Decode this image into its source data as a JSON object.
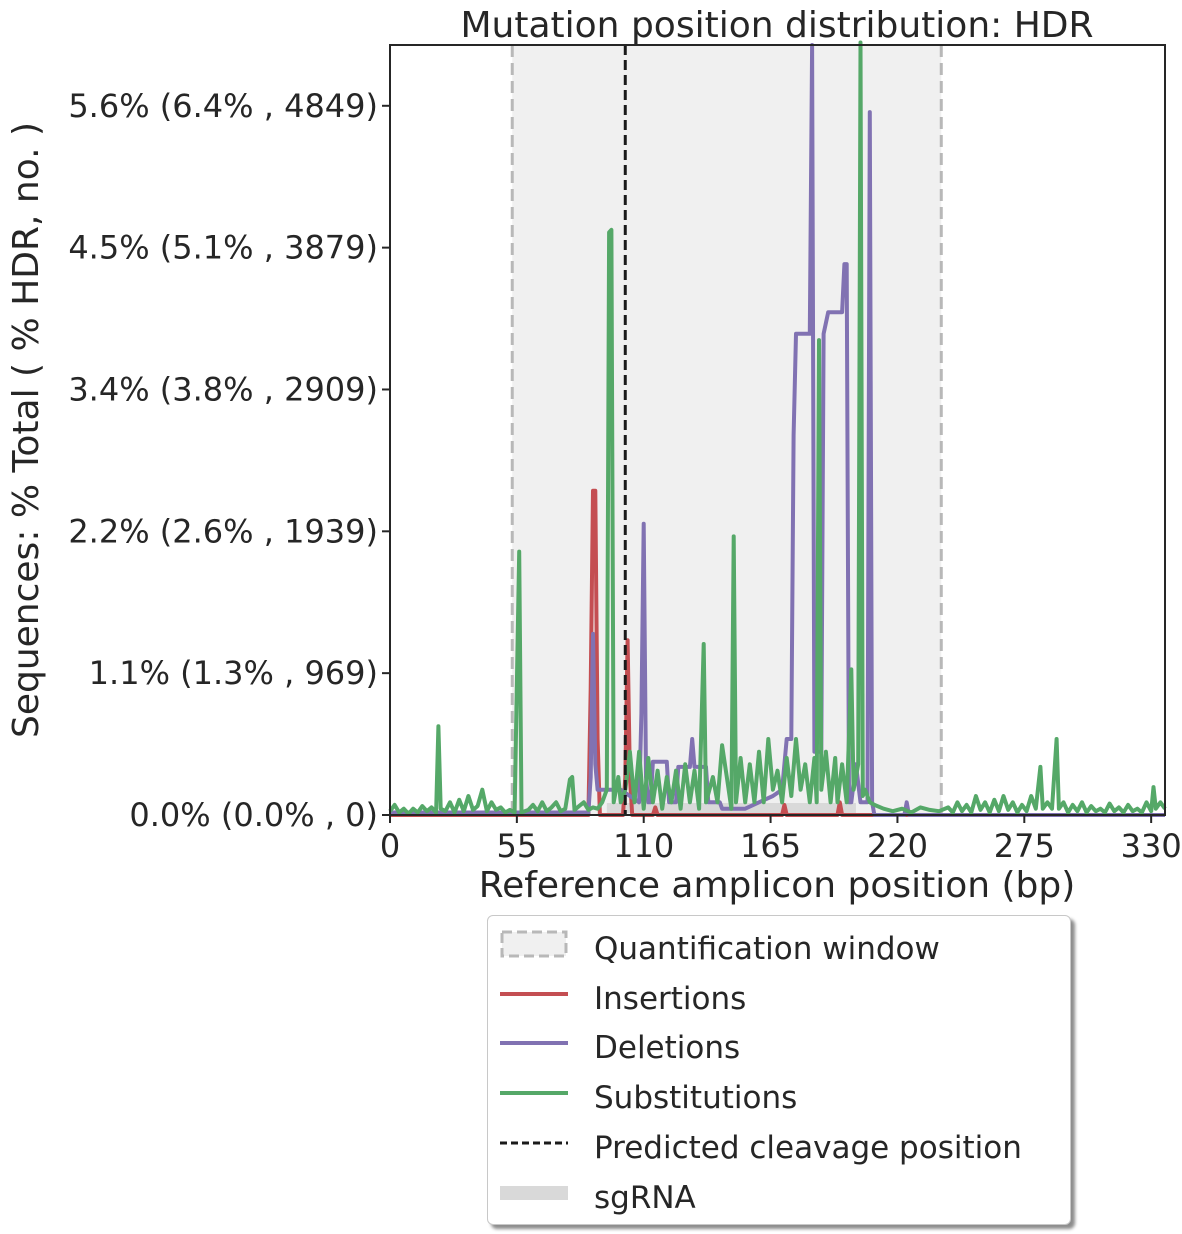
{
  "chart_data": {
    "type": "line",
    "title": "Mutation position distribution: HDR",
    "xlabel": "Reference amplicon position (bp)",
    "ylabel": "Sequences: % Total ( % HDR, no. )",
    "xlim": [
      0,
      336
    ],
    "ylim": [
      0,
      6.08
    ],
    "x_ticks": [
      0,
      55,
      110,
      165,
      220,
      275,
      330
    ],
    "x_tick_labels": [
      "0",
      "55",
      "110",
      "165",
      "220",
      "275",
      "330"
    ],
    "y_ticks": [
      0,
      1.12,
      2.24,
      3.36,
      4.48,
      5.6
    ],
    "y_tick_labels": [
      "0.0% (0.0% , 0)",
      "1.1% (1.3% , 969)",
      "2.2% (2.6% , 1939)",
      "3.4% (3.8% , 2909)",
      "4.5% (5.1% , 3879)",
      "5.6% (6.4% , 4849)"
    ],
    "quantification_window": [
      53,
      239
    ],
    "predicted_cleavage_position": 102,
    "sgRNA": [
      94,
      202
    ],
    "grid": false,
    "legend_position": "below",
    "series": [
      {
        "name": "Insertions",
        "color": "#c44e52",
        "points": [
          [
            0,
            0
          ],
          [
            86,
            0
          ],
          [
            87,
            1.0
          ],
          [
            88,
            2.56
          ],
          [
            89,
            2.56
          ],
          [
            90,
            0.6
          ],
          [
            91,
            0
          ],
          [
            101,
            0
          ],
          [
            102,
            0.3
          ],
          [
            103,
            1.38
          ],
          [
            104,
            0.3
          ],
          [
            105,
            0
          ],
          [
            114,
            0
          ],
          [
            115,
            0.06
          ],
          [
            116,
            0
          ],
          [
            170,
            0
          ],
          [
            171,
            0.08
          ],
          [
            172,
            0
          ],
          [
            194,
            0
          ],
          [
            195,
            0.1
          ],
          [
            196,
            0
          ],
          [
            336,
            0
          ]
        ]
      },
      {
        "name": "Deletions",
        "color": "#8172b2",
        "points": [
          [
            0,
            0.02
          ],
          [
            86,
            0.02
          ],
          [
            87,
            0.3
          ],
          [
            88,
            1.43
          ],
          [
            89,
            0.4
          ],
          [
            90,
            0.2
          ],
          [
            100,
            0.2
          ],
          [
            104,
            0.15
          ],
          [
            108,
            0.1
          ],
          [
            109,
            0.8
          ],
          [
            110,
            2.3
          ],
          [
            111,
            0.3
          ],
          [
            112,
            0.1
          ],
          [
            113,
            0.1
          ],
          [
            114,
            0.42
          ],
          [
            120,
            0.42
          ],
          [
            121,
            0.1
          ],
          [
            124,
            0.1
          ],
          [
            125,
            0.38
          ],
          [
            130,
            0.38
          ],
          [
            131,
            0.6
          ],
          [
            132,
            0.38
          ],
          [
            137,
            0.38
          ],
          [
            138,
            0.1
          ],
          [
            143,
            0.1
          ],
          [
            144,
            0.05
          ],
          [
            148,
            0.05
          ],
          [
            154,
            0.05
          ],
          [
            160,
            0.1
          ],
          [
            166,
            0.15
          ],
          [
            170,
            0.2
          ],
          [
            172,
            0.6
          ],
          [
            174,
            0.6
          ],
          [
            175,
            3.0
          ],
          [
            176,
            3.8
          ],
          [
            182,
            3.8
          ],
          [
            183,
            6.08
          ],
          [
            184,
            0.5
          ],
          [
            187,
            0.5
          ],
          [
            188,
            3.8
          ],
          [
            190,
            3.97
          ],
          [
            196,
            3.97
          ],
          [
            197,
            4.35
          ],
          [
            198,
            4.35
          ],
          [
            199,
            0.1
          ],
          [
            200,
            0.1
          ],
          [
            202,
            0.4
          ],
          [
            204,
            0.1
          ],
          [
            207,
            0.1
          ],
          [
            208,
            5.55
          ],
          [
            209,
            0.1
          ],
          [
            210,
            0
          ],
          [
            223,
            0
          ],
          [
            224,
            0.1
          ],
          [
            225,
            0
          ],
          [
            336,
            0
          ]
        ]
      },
      {
        "name": "Substitutions",
        "color": "#55a868",
        "points": [
          [
            0,
            0.03
          ],
          [
            2,
            0.08
          ],
          [
            4,
            0.02
          ],
          [
            6,
            0.05
          ],
          [
            8,
            0.01
          ],
          [
            10,
            0.05
          ],
          [
            12,
            0.02
          ],
          [
            14,
            0.07
          ],
          [
            16,
            0.03
          ],
          [
            18,
            0.06
          ],
          [
            20,
            0.02
          ],
          [
            21,
            0.7
          ],
          [
            22,
            0.05
          ],
          [
            24,
            0.03
          ],
          [
            26,
            0.1
          ],
          [
            28,
            0.02
          ],
          [
            30,
            0.12
          ],
          [
            32,
            0.03
          ],
          [
            34,
            0.15
          ],
          [
            36,
            0.04
          ],
          [
            38,
            0.07
          ],
          [
            40,
            0.2
          ],
          [
            42,
            0.03
          ],
          [
            44,
            0.1
          ],
          [
            46,
            0.04
          ],
          [
            48,
            0.06
          ],
          [
            50,
            0.02
          ],
          [
            52,
            0.04
          ],
          [
            54,
            0.02
          ],
          [
            56,
            2.08
          ],
          [
            57,
            0.02
          ],
          [
            60,
            0.04
          ],
          [
            62,
            0.08
          ],
          [
            64,
            0.03
          ],
          [
            66,
            0.1
          ],
          [
            68,
            0.03
          ],
          [
            70,
            0.06
          ],
          [
            72,
            0.1
          ],
          [
            74,
            0.03
          ],
          [
            76,
            0.05
          ],
          [
            78,
            0.28
          ],
          [
            79,
            0.3
          ],
          [
            80,
            0.04
          ],
          [
            82,
            0.07
          ],
          [
            84,
            0.1
          ],
          [
            86,
            0.04
          ],
          [
            88,
            0.06
          ],
          [
            90,
            0.05
          ],
          [
            92,
            0.1
          ],
          [
            94,
            0.2
          ],
          [
            95,
            4.6
          ],
          [
            96,
            4.62
          ],
          [
            97,
            0.1
          ],
          [
            99,
            0.3
          ],
          [
            100,
            0.1
          ],
          [
            102,
            0.2
          ],
          [
            104,
            0.5
          ],
          [
            106,
            0.1
          ],
          [
            108,
            0.5
          ],
          [
            110,
            0.05
          ],
          [
            112,
            0.45
          ],
          [
            114,
            0.1
          ],
          [
            116,
            0.35
          ],
          [
            118,
            0.05
          ],
          [
            120,
            0.3
          ],
          [
            122,
            0.1
          ],
          [
            124,
            0.35
          ],
          [
            126,
            0.05
          ],
          [
            128,
            0.4
          ],
          [
            130,
            0.1
          ],
          [
            132,
            0.35
          ],
          [
            134,
            0.05
          ],
          [
            136,
            1.35
          ],
          [
            137,
            0.1
          ],
          [
            140,
            0.3
          ],
          [
            142,
            0.1
          ],
          [
            144,
            0.55
          ],
          [
            146,
            0.3
          ],
          [
            148,
            0.05
          ],
          [
            149,
            2.2
          ],
          [
            150,
            0.1
          ],
          [
            152,
            0.45
          ],
          [
            154,
            0.1
          ],
          [
            156,
            0.4
          ],
          [
            158,
            0.1
          ],
          [
            160,
            0.5
          ],
          [
            162,
            0.1
          ],
          [
            164,
            0.6
          ],
          [
            166,
            0.2
          ],
          [
            168,
            0.35
          ],
          [
            170,
            0.1
          ],
          [
            172,
            0.45
          ],
          [
            174,
            0.15
          ],
          [
            176,
            0.6
          ],
          [
            178,
            0.2
          ],
          [
            180,
            0.4
          ],
          [
            182,
            0.1
          ],
          [
            184,
            0.45
          ],
          [
            185,
            0.1
          ],
          [
            186,
            3.75
          ],
          [
            187,
            0.2
          ],
          [
            189,
            0.5
          ],
          [
            191,
            0.1
          ],
          [
            193,
            0.45
          ],
          [
            194,
            0.1
          ],
          [
            196,
            0.4
          ],
          [
            198,
            0.1
          ],
          [
            200,
            1.15
          ],
          [
            201,
            0.2
          ],
          [
            203,
            0.4
          ],
          [
            204,
            6.1
          ],
          [
            205,
            0.15
          ],
          [
            206,
            0.2
          ],
          [
            208,
            0.1
          ],
          [
            210,
            0.08
          ],
          [
            214,
            0.05
          ],
          [
            218,
            0.03
          ],
          [
            222,
            0.05
          ],
          [
            226,
            0.02
          ],
          [
            230,
            0.06
          ],
          [
            234,
            0.04
          ],
          [
            238,
            0.03
          ],
          [
            242,
            0.06
          ],
          [
            244,
            0.02
          ],
          [
            246,
            0.1
          ],
          [
            248,
            0.03
          ],
          [
            250,
            0.08
          ],
          [
            252,
            0.02
          ],
          [
            254,
            0.15
          ],
          [
            256,
            0.04
          ],
          [
            258,
            0.1
          ],
          [
            260,
            0.02
          ],
          [
            262,
            0.12
          ],
          [
            264,
            0.03
          ],
          [
            266,
            0.15
          ],
          [
            268,
            0.04
          ],
          [
            270,
            0.1
          ],
          [
            272,
            0.02
          ],
          [
            274,
            0.08
          ],
          [
            276,
            0.03
          ],
          [
            278,
            0.15
          ],
          [
            280,
            0.05
          ],
          [
            282,
            0.38
          ],
          [
            283,
            0.05
          ],
          [
            285,
            0.1
          ],
          [
            287,
            0.05
          ],
          [
            289,
            0.6
          ],
          [
            290,
            0.05
          ],
          [
            292,
            0.1
          ],
          [
            294,
            0.02
          ],
          [
            296,
            0.08
          ],
          [
            298,
            0.03
          ],
          [
            300,
            0.1
          ],
          [
            302,
            0.02
          ],
          [
            304,
            0.07
          ],
          [
            306,
            0.03
          ],
          [
            308,
            0.05
          ],
          [
            310,
            0.02
          ],
          [
            312,
            0.09
          ],
          [
            314,
            0.03
          ],
          [
            316,
            0.06
          ],
          [
            318,
            0.02
          ],
          [
            320,
            0.08
          ],
          [
            322,
            0.03
          ],
          [
            324,
            0.05
          ],
          [
            326,
            0.02
          ],
          [
            328,
            0.1
          ],
          [
            330,
            0.03
          ],
          [
            331,
            0.22
          ],
          [
            332,
            0.05
          ],
          [
            334,
            0.1
          ],
          [
            336,
            0.05
          ]
        ]
      }
    ]
  },
  "legend": {
    "quantification_window": "Quantification window",
    "insertions": "Insertions",
    "deletions": "Deletions",
    "substitutions": "Substitutions",
    "cleavage": "Predicted cleavage position",
    "sgrna": "sgRNA"
  },
  "colors": {
    "window_fill": "#f0f0f0",
    "window_border": "#b8b8b8",
    "sgrna": "#d9d9d9",
    "cleavage": "#1a1a1a",
    "axis": "#262626"
  }
}
